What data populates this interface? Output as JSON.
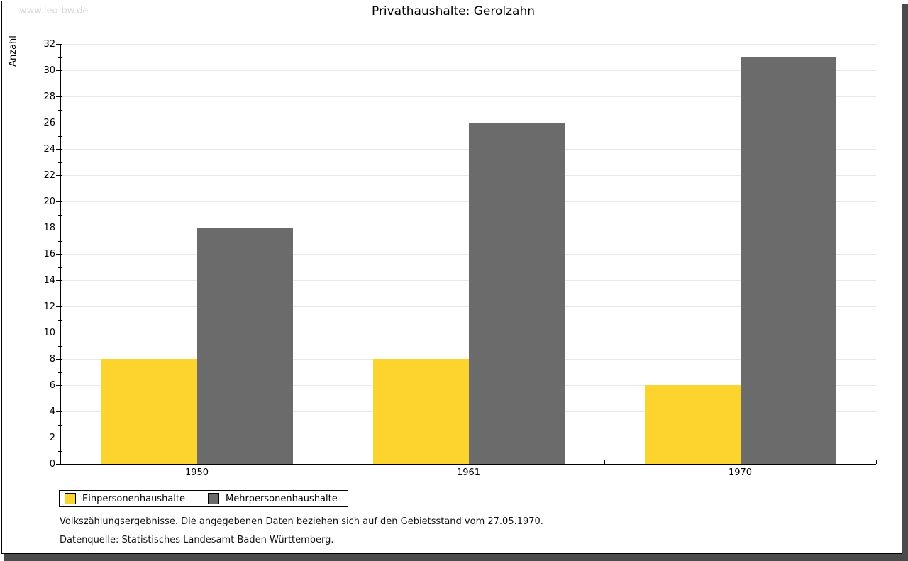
{
  "watermark": "www.leo-bw.de",
  "title": "Privathaushalte: Gerolzahn",
  "chart_data": {
    "type": "bar",
    "title": "Privathaushalte: Gerolzahn",
    "categories": [
      "1950",
      "1961",
      "1970"
    ],
    "series": [
      {
        "name": "Einpersonenhaushalte",
        "color": "#FCD42D",
        "values": [
          8,
          8,
          6
        ]
      },
      {
        "name": "Mehrpersonenhaushalte",
        "color": "#6B6B6B",
        "values": [
          18,
          26,
          31
        ]
      }
    ],
    "xlabel": "",
    "ylabel": "Anzahl",
    "ylim": [
      0,
      32
    ],
    "ytick_step": 2,
    "yminor_step": 1,
    "grid": "horizontal",
    "legend_position": "bottom-left"
  },
  "footnotes": [
    "Volkszählungsergebnisse. Die angegebenen Daten beziehen sich auf den Gebietsstand vom 27.05.1970.",
    "Datenquelle: Statistisches Landesamt Baden-Württemberg."
  ]
}
